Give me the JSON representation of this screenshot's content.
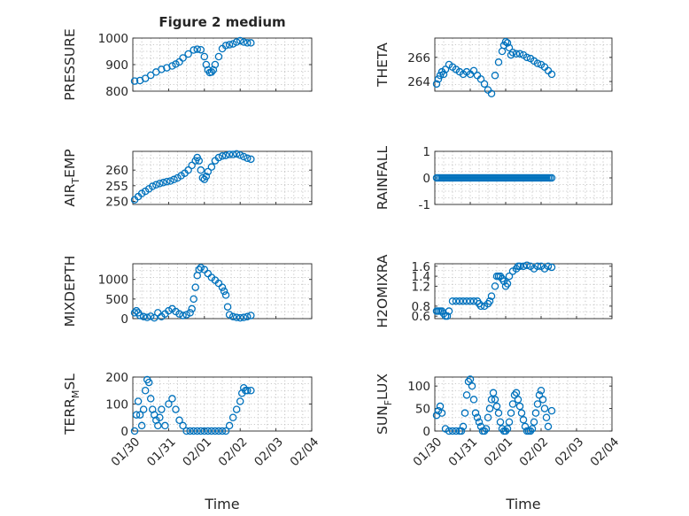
{
  "chart_data": [
    {
      "type": "scatter",
      "title": "Figure 2 medium",
      "xlabel": "",
      "ylabel": "PRESSURE",
      "ylim": [
        800,
        1000
      ],
      "yticks": [
        800,
        900,
        1000
      ],
      "ytick_labels": [
        "800",
        "900",
        "1000"
      ],
      "xlim": [
        "2018-01-30",
        "2018-02-04"
      ],
      "grid": true,
      "color": "#0072BD",
      "series": [
        {
          "x": [
            0.05,
            0.2,
            0.35,
            0.5,
            0.65,
            0.8,
            0.95,
            1.1,
            1.2,
            1.3,
            1.4,
            1.55,
            1.7,
            1.8,
            1.9,
            2.0,
            2.05,
            2.1,
            2.15,
            2.2,
            2.25,
            2.3,
            2.4,
            2.5,
            2.6,
            2.7,
            2.8,
            2.9,
            3.0,
            3.1,
            3.2,
            3.3
          ],
          "y": [
            838,
            840,
            848,
            860,
            872,
            882,
            888,
            895,
            902,
            910,
            925,
            940,
            955,
            958,
            956,
            930,
            900,
            880,
            870,
            872,
            880,
            900,
            930,
            960,
            972,
            975,
            978,
            985,
            990,
            985,
            982,
            982
          ]
        }
      ]
    },
    {
      "type": "scatter",
      "xlabel": "",
      "ylabel": "THETA",
      "ylim": [
        263.2,
        267.6
      ],
      "yticks": [
        264,
        266
      ],
      "ytick_labels": [
        "264",
        "266"
      ],
      "xlim": [
        "2018-01-30",
        "2018-02-04"
      ],
      "grid": true,
      "color": "#0072BD",
      "series": [
        {
          "x": [
            0.05,
            0.1,
            0.15,
            0.2,
            0.25,
            0.3,
            0.4,
            0.5,
            0.6,
            0.7,
            0.8,
            0.9,
            1.0,
            1.1,
            1.2,
            1.3,
            1.4,
            1.5,
            1.6,
            1.7,
            1.8,
            1.9,
            1.95,
            2.0,
            2.05,
            2.1,
            2.15,
            2.2,
            2.3,
            2.4,
            2.5,
            2.6,
            2.7,
            2.8,
            2.9,
            3.0,
            3.1,
            3.2,
            3.3
          ],
          "y": [
            263.8,
            264.2,
            264.5,
            264.8,
            264.6,
            265.0,
            265.4,
            265.2,
            265.0,
            264.8,
            264.6,
            264.8,
            264.6,
            264.9,
            264.5,
            264.2,
            263.8,
            263.3,
            263.0,
            264.5,
            265.6,
            266.5,
            267.0,
            267.3,
            267.2,
            266.8,
            266.2,
            266.4,
            266.3,
            266.3,
            266.2,
            266.0,
            265.9,
            265.7,
            265.5,
            265.4,
            265.2,
            264.9,
            264.6
          ]
        }
      ]
    },
    {
      "type": "scatter",
      "xlabel": "",
      "ylabel": "AIR_TEMP",
      "ylabel_parts": [
        "AIR",
        "T",
        "EMP"
      ],
      "ylim": [
        249,
        266
      ],
      "yticks": [
        250,
        255,
        260
      ],
      "ytick_labels": [
        "250",
        "255",
        "260"
      ],
      "xlim": [
        "2018-01-30",
        "2018-02-04"
      ],
      "grid": true,
      "color": "#0072BD",
      "series": [
        {
          "x": [
            0.05,
            0.15,
            0.25,
            0.35,
            0.45,
            0.55,
            0.65,
            0.75,
            0.85,
            0.95,
            1.05,
            1.15,
            1.25,
            1.35,
            1.45,
            1.55,
            1.65,
            1.75,
            1.8,
            1.85,
            1.9,
            1.95,
            2.0,
            2.05,
            2.1,
            2.2,
            2.3,
            2.4,
            2.5,
            2.6,
            2.7,
            2.8,
            2.9,
            3.0,
            3.1,
            3.2,
            3.3
          ],
          "y": [
            250.5,
            251.5,
            252.5,
            253.2,
            254.0,
            254.8,
            255.3,
            255.7,
            256.0,
            256.3,
            256.5,
            257.0,
            257.5,
            258.2,
            259.0,
            260.0,
            261.5,
            263.0,
            264.0,
            263.0,
            260.0,
            257.5,
            257.0,
            258.0,
            259.5,
            261.0,
            263.0,
            264.0,
            264.5,
            264.7,
            265.0,
            265.0,
            265.2,
            264.8,
            264.3,
            263.8,
            263.5
          ]
        }
      ]
    },
    {
      "type": "scatter",
      "xlabel": "",
      "ylabel": "RAINFALL",
      "ylim": [
        -1,
        1
      ],
      "yticks": [
        -1,
        0,
        1
      ],
      "ytick_labels": [
        "-1",
        "0",
        "1"
      ],
      "xlim": [
        "2018-01-30",
        "2018-02-04"
      ],
      "grid": true,
      "color": "#0072BD",
      "series": [
        {
          "x": [
            0.05,
            0.1,
            0.15,
            0.2,
            0.25,
            0.3,
            0.35,
            0.4,
            0.45,
            0.5,
            0.55,
            0.6,
            0.65,
            0.7,
            0.75,
            0.8,
            0.85,
            0.9,
            0.95,
            1.0,
            1.05,
            1.1,
            1.15,
            1.2,
            1.25,
            1.3,
            1.35,
            1.4,
            1.45,
            1.5,
            1.55,
            1.6,
            1.65,
            1.7,
            1.75,
            1.8,
            1.85,
            1.9,
            1.95,
            2.0,
            2.05,
            2.1,
            2.15,
            2.2,
            2.25,
            2.3,
            2.35,
            2.4,
            2.45,
            2.5,
            2.55,
            2.6,
            2.65,
            2.7,
            2.75,
            2.8,
            2.85,
            2.9,
            2.95,
            3.0,
            3.05,
            3.1,
            3.15,
            3.2,
            3.25,
            3.3
          ],
          "y": [
            0,
            0,
            0,
            0,
            0,
            0,
            0,
            0,
            0,
            0,
            0,
            0,
            0,
            0,
            0,
            0,
            0,
            0,
            0,
            0,
            0,
            0,
            0,
            0,
            0,
            0,
            0,
            0,
            0,
            0,
            0,
            0,
            0,
            0,
            0,
            0,
            0,
            0,
            0,
            0,
            0,
            0,
            0,
            0,
            0,
            0,
            0,
            0,
            0,
            0,
            0,
            0,
            0,
            0,
            0,
            0,
            0,
            0,
            0,
            0,
            0,
            0,
            0,
            0,
            0,
            0
          ]
        }
      ]
    },
    {
      "type": "scatter",
      "xlabel": "",
      "ylabel": "MIXDEPTH",
      "ylim": [
        0,
        1400
      ],
      "yticks": [
        0,
        500,
        1000
      ],
      "ytick_labels": [
        "0",
        "500",
        "1000"
      ],
      "xlim": [
        "2018-01-30",
        "2018-02-04"
      ],
      "grid": true,
      "color": "#0072BD",
      "series": [
        {
          "x": [
            0.05,
            0.1,
            0.15,
            0.2,
            0.3,
            0.4,
            0.5,
            0.6,
            0.7,
            0.8,
            0.9,
            1.0,
            1.1,
            1.2,
            1.3,
            1.4,
            1.5,
            1.6,
            1.65,
            1.7,
            1.75,
            1.8,
            1.85,
            1.9,
            2.0,
            2.1,
            2.2,
            2.3,
            2.4,
            2.5,
            2.55,
            2.6,
            2.65,
            2.7,
            2.8,
            2.9,
            3.0,
            3.1,
            3.2,
            3.3
          ],
          "y": [
            150,
            200,
            150,
            80,
            50,
            30,
            60,
            20,
            150,
            50,
            120,
            200,
            250,
            180,
            120,
            80,
            100,
            150,
            250,
            500,
            800,
            1100,
            1250,
            1300,
            1250,
            1150,
            1050,
            980,
            900,
            800,
            700,
            600,
            300,
            100,
            50,
            30,
            20,
            30,
            50,
            80
          ]
        }
      ]
    },
    {
      "type": "scatter",
      "xlabel": "",
      "ylabel": "H2OMIXRA",
      "ylim": [
        0.55,
        1.65
      ],
      "yticks": [
        0.6,
        0.8,
        1.2,
        1.4,
        1.6
      ],
      "ytick_labels": [
        "0.6",
        "0.8",
        "1.2",
        "1.4",
        "1.6"
      ],
      "xlim": [
        "2018-01-30",
        "2018-02-04"
      ],
      "grid": true,
      "color": "#0072BD",
      "series": [
        {
          "x": [
            0.05,
            0.1,
            0.15,
            0.2,
            0.25,
            0.3,
            0.35,
            0.4,
            0.5,
            0.6,
            0.7,
            0.8,
            0.9,
            1.0,
            1.1,
            1.2,
            1.25,
            1.3,
            1.4,
            1.5,
            1.55,
            1.6,
            1.7,
            1.75,
            1.8,
            1.85,
            1.9,
            1.95,
            2.0,
            2.05,
            2.1,
            2.2,
            2.3,
            2.35,
            2.4,
            2.5,
            2.6,
            2.7,
            2.8,
            2.9,
            3.0,
            3.1,
            3.2,
            3.3
          ],
          "y": [
            0.7,
            0.7,
            0.7,
            0.7,
            0.65,
            0.6,
            0.6,
            0.7,
            0.9,
            0.9,
            0.9,
            0.9,
            0.9,
            0.9,
            0.9,
            0.9,
            0.85,
            0.8,
            0.8,
            0.85,
            0.9,
            1.0,
            1.2,
            1.4,
            1.4,
            1.4,
            1.35,
            1.3,
            1.2,
            1.25,
            1.4,
            1.5,
            1.55,
            1.6,
            1.6,
            1.6,
            1.62,
            1.6,
            1.55,
            1.6,
            1.6,
            1.55,
            1.6,
            1.58
          ]
        }
      ]
    },
    {
      "type": "scatter",
      "xlabel": "Time",
      "ylabel": "TERR_MSL",
      "ylabel_parts": [
        "TERR",
        "M",
        "SL"
      ],
      "ylim": [
        0,
        200
      ],
      "yticks": [
        0,
        100,
        200
      ],
      "ytick_labels": [
        "0",
        "100",
        "200"
      ],
      "xlim": [
        "2018-01-30",
        "2018-02-04"
      ],
      "grid": true,
      "color": "#0072BD",
      "xticks": [
        "01/30",
        "01/31",
        "02/01",
        "02/02",
        "02/03",
        "02/04"
      ],
      "series": [
        {
          "x": [
            0.05,
            0.1,
            0.15,
            0.2,
            0.25,
            0.3,
            0.35,
            0.4,
            0.45,
            0.5,
            0.55,
            0.6,
            0.65,
            0.7,
            0.75,
            0.8,
            0.9,
            1.0,
            1.1,
            1.2,
            1.3,
            1.4,
            1.5,
            1.6,
            1.7,
            1.8,
            1.9,
            2.0,
            2.1,
            2.2,
            2.3,
            2.4,
            2.5,
            2.6,
            2.7,
            2.8,
            2.9,
            3.0,
            3.05,
            3.1,
            3.15,
            3.2,
            3.3
          ],
          "y": [
            0,
            60,
            110,
            60,
            20,
            80,
            150,
            190,
            180,
            120,
            80,
            60,
            40,
            20,
            50,
            80,
            20,
            100,
            120,
            80,
            40,
            20,
            0,
            0,
            0,
            0,
            0,
            0,
            0,
            0,
            0,
            0,
            0,
            0,
            20,
            50,
            80,
            110,
            140,
            160,
            150,
            150,
            150
          ]
        }
      ]
    },
    {
      "type": "scatter",
      "xlabel": "Time",
      "ylabel": "SUN_FLUX",
      "ylabel_parts": [
        "SUN",
        "F",
        "LUX"
      ],
      "ylim": [
        0,
        120
      ],
      "yticks": [
        0,
        50,
        100
      ],
      "ytick_labels": [
        "0",
        "50",
        "100"
      ],
      "xlim": [
        "2018-01-30",
        "2018-02-04"
      ],
      "grid": true,
      "color": "#0072BD",
      "xticks": [
        "01/30",
        "01/31",
        "02/01",
        "02/02",
        "02/03",
        "02/04"
      ],
      "series": [
        {
          "x": [
            0.05,
            0.1,
            0.15,
            0.2,
            0.3,
            0.4,
            0.5,
            0.6,
            0.7,
            0.75,
            0.8,
            0.85,
            0.9,
            0.95,
            1.0,
            1.05,
            1.1,
            1.15,
            1.2,
            1.25,
            1.3,
            1.35,
            1.4,
            1.45,
            1.5,
            1.55,
            1.6,
            1.65,
            1.7,
            1.75,
            1.8,
            1.85,
            1.9,
            1.95,
            2.0,
            2.05,
            2.1,
            2.15,
            2.2,
            2.25,
            2.3,
            2.35,
            2.4,
            2.45,
            2.5,
            2.55,
            2.6,
            2.65,
            2.7,
            2.75,
            2.8,
            2.85,
            2.9,
            2.95,
            3.0,
            3.05,
            3.1,
            3.15,
            3.2,
            3.3
          ],
          "y": [
            35,
            45,
            55,
            40,
            5,
            0,
            0,
            0,
            0,
            0,
            10,
            40,
            80,
            110,
            115,
            100,
            70,
            40,
            30,
            20,
            10,
            0,
            0,
            5,
            30,
            50,
            70,
            85,
            70,
            55,
            40,
            20,
            5,
            0,
            0,
            5,
            20,
            40,
            60,
            80,
            85,
            70,
            55,
            40,
            25,
            10,
            0,
            0,
            0,
            5,
            20,
            40,
            60,
            80,
            90,
            70,
            50,
            30,
            10,
            45
          ]
        }
      ]
    }
  ]
}
